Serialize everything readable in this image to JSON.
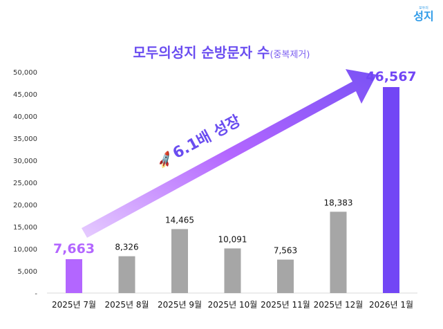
{
  "logo": {
    "small": "모두의",
    "big": "성지"
  },
  "title": {
    "main": "모두의성지 순방문자 수",
    "sub": "(중복제거)"
  },
  "annotation": {
    "icon": "rocket-icon",
    "text": "6.1배 성장"
  },
  "colors": {
    "first": "#b366ff",
    "last": "#7246f5",
    "middle": "#a6a6a6",
    "axis": "#d9d9d9"
  },
  "chart_data": {
    "type": "bar",
    "title": "모두의성지 순방문자 수(중복제거)",
    "xlabel": "",
    "ylabel": "",
    "ylim": [
      0,
      50000
    ],
    "yticks": [
      0,
      5000,
      10000,
      15000,
      20000,
      25000,
      30000,
      35000,
      40000,
      45000,
      50000
    ],
    "ytick_labels": [
      "-",
      "5,000",
      "10,000",
      "15,000",
      "20,000",
      "25,000",
      "30,000",
      "35,000",
      "40,000",
      "45,000",
      "50,000"
    ],
    "categories": [
      "2025년 7월",
      "2025년 8월",
      "2025년 9월",
      "2025년 10월",
      "2025년 11월",
      "2025년 12월",
      "2026년 1월"
    ],
    "values": [
      7663,
      8326,
      14465,
      10091,
      7563,
      18383,
      46567
    ],
    "value_labels": [
      "7,663",
      "8,326",
      "14,465",
      "10,091",
      "7,563",
      "18,383",
      "46,567"
    ],
    "grid": false
  }
}
